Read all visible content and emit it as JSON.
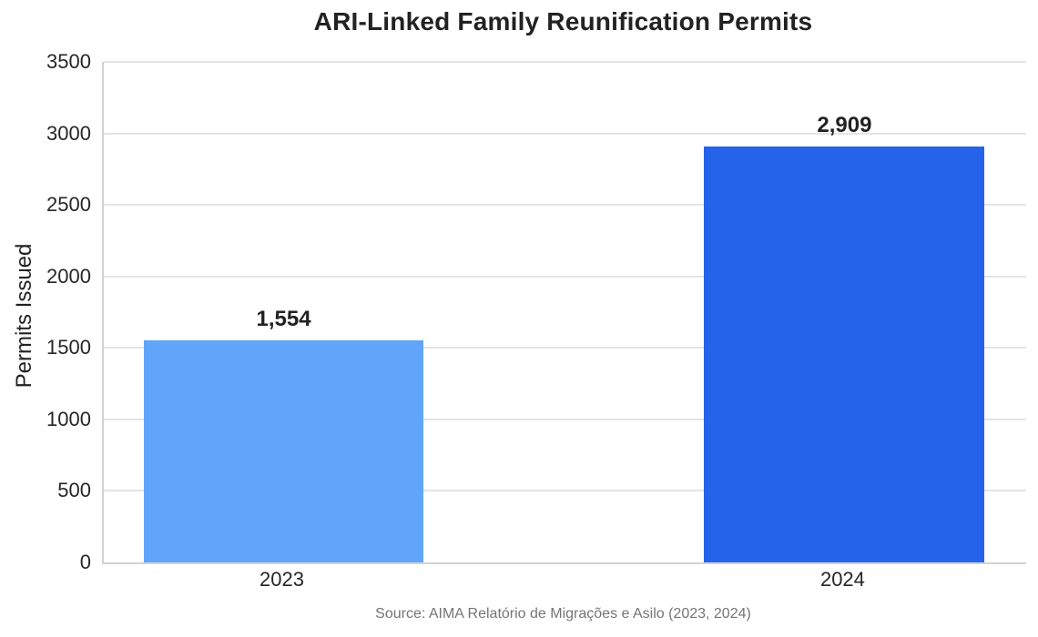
{
  "chart_data": {
    "type": "bar",
    "title": "ARI-Linked Family Reunification Permits",
    "categories": [
      "2023",
      "2024"
    ],
    "values": [
      1554,
      2909
    ],
    "value_labels": [
      "1,554",
      "2,909"
    ],
    "bar_colors": [
      "#60A5FA",
      "#2563EB"
    ],
    "xlabel": "",
    "ylabel": "Permits Issued",
    "ylim": [
      0,
      3500
    ],
    "yticks": [
      0,
      500,
      1000,
      1500,
      2000,
      2500,
      3000,
      3500
    ],
    "grid": "horizontal",
    "legend": "none",
    "annotation": "Source: AIMA Relatório de Migrações e Asilo (2023, 2024)",
    "bar_centers_pct": [
      19.5,
      80.3
    ],
    "bar_width_pct": 30.4
  }
}
